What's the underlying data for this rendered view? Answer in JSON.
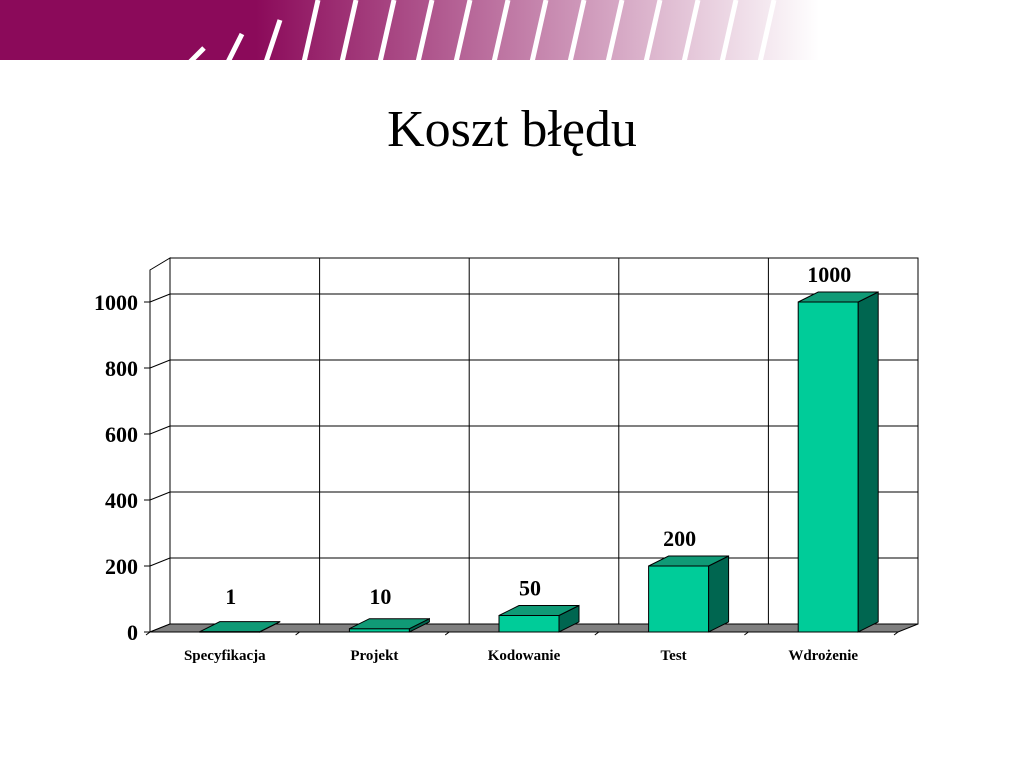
{
  "slide": {
    "title": "Koszt błędu"
  },
  "theme": {
    "banner_color": "#8b0a5a",
    "bar_front": "#00cc99",
    "bar_top": "#109a76",
    "bar_side": "#006650",
    "floor": "#808080"
  },
  "chart_data": {
    "type": "bar",
    "title": "",
    "xlabel": "",
    "ylabel": "",
    "categories": [
      "Specyfikacja",
      "Projekt",
      "Kodowanie",
      "Test",
      "Wdrożenie"
    ],
    "values": [
      1,
      10,
      50,
      200,
      1000
    ],
    "data_labels": [
      "1",
      "10",
      "50",
      "200",
      "1000"
    ],
    "ylim": [
      0,
      1000
    ],
    "yticks": [
      0,
      200,
      400,
      600,
      800,
      1000
    ],
    "grid": true,
    "style": "3d-column"
  }
}
